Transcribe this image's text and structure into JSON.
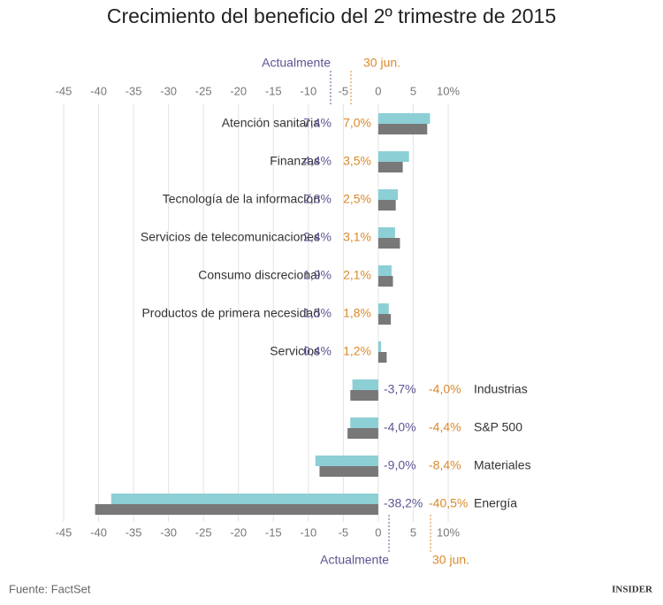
{
  "chart_data": {
    "type": "bar",
    "orientation": "horizontal",
    "title": "Crecimiento del beneficio del 2º trimestre de 2015",
    "categories": [
      "Atención sanitaria",
      "Finanzas",
      "Tecnología de la información",
      "Servicios de telecomunicaciones",
      "Consumo discrecional",
      "Productos de primera necesidad",
      "Servicios",
      "Industrias",
      "S&P 500",
      "Materiales",
      "Energía"
    ],
    "series": [
      {
        "name": "Actualmente",
        "color": "#8ccfd5",
        "label_color": "#5c5592",
        "values": [
          7.4,
          4.4,
          2.8,
          2.4,
          1.9,
          1.5,
          0.4,
          -3.7,
          -4.0,
          -9.0,
          -38.2
        ],
        "value_labels": [
          "7,4%",
          "4,4%",
          "2,8%",
          "2,4%",
          "1,9%",
          "1,5%",
          "0,4%",
          "-3,7%",
          "-4,0%",
          "-9,0%",
          "-38,2%"
        ]
      },
      {
        "name": "30 jun.",
        "color": "#787878",
        "label_color": "#d98a2b",
        "values": [
          7.0,
          3.5,
          2.5,
          3.1,
          2.1,
          1.8,
          1.2,
          -4.0,
          -4.4,
          -8.4,
          -40.5
        ],
        "value_labels": [
          "7,0%",
          "3,5%",
          "2,5%",
          "3,1%",
          "2,1%",
          "1,8%",
          "1,2%",
          "-4,0%",
          "-4,4%",
          "-8,4%",
          "-40,5%"
        ]
      }
    ],
    "xlim": [
      -45,
      10
    ],
    "xticks": [
      -45,
      -40,
      -35,
      -30,
      -25,
      -20,
      -15,
      -10,
      -5,
      0,
      5,
      {
        "value": 10,
        "label": "10%"
      }
    ],
    "grid": true,
    "source": "Fuente: FactSet",
    "logo": "INSIDER"
  }
}
